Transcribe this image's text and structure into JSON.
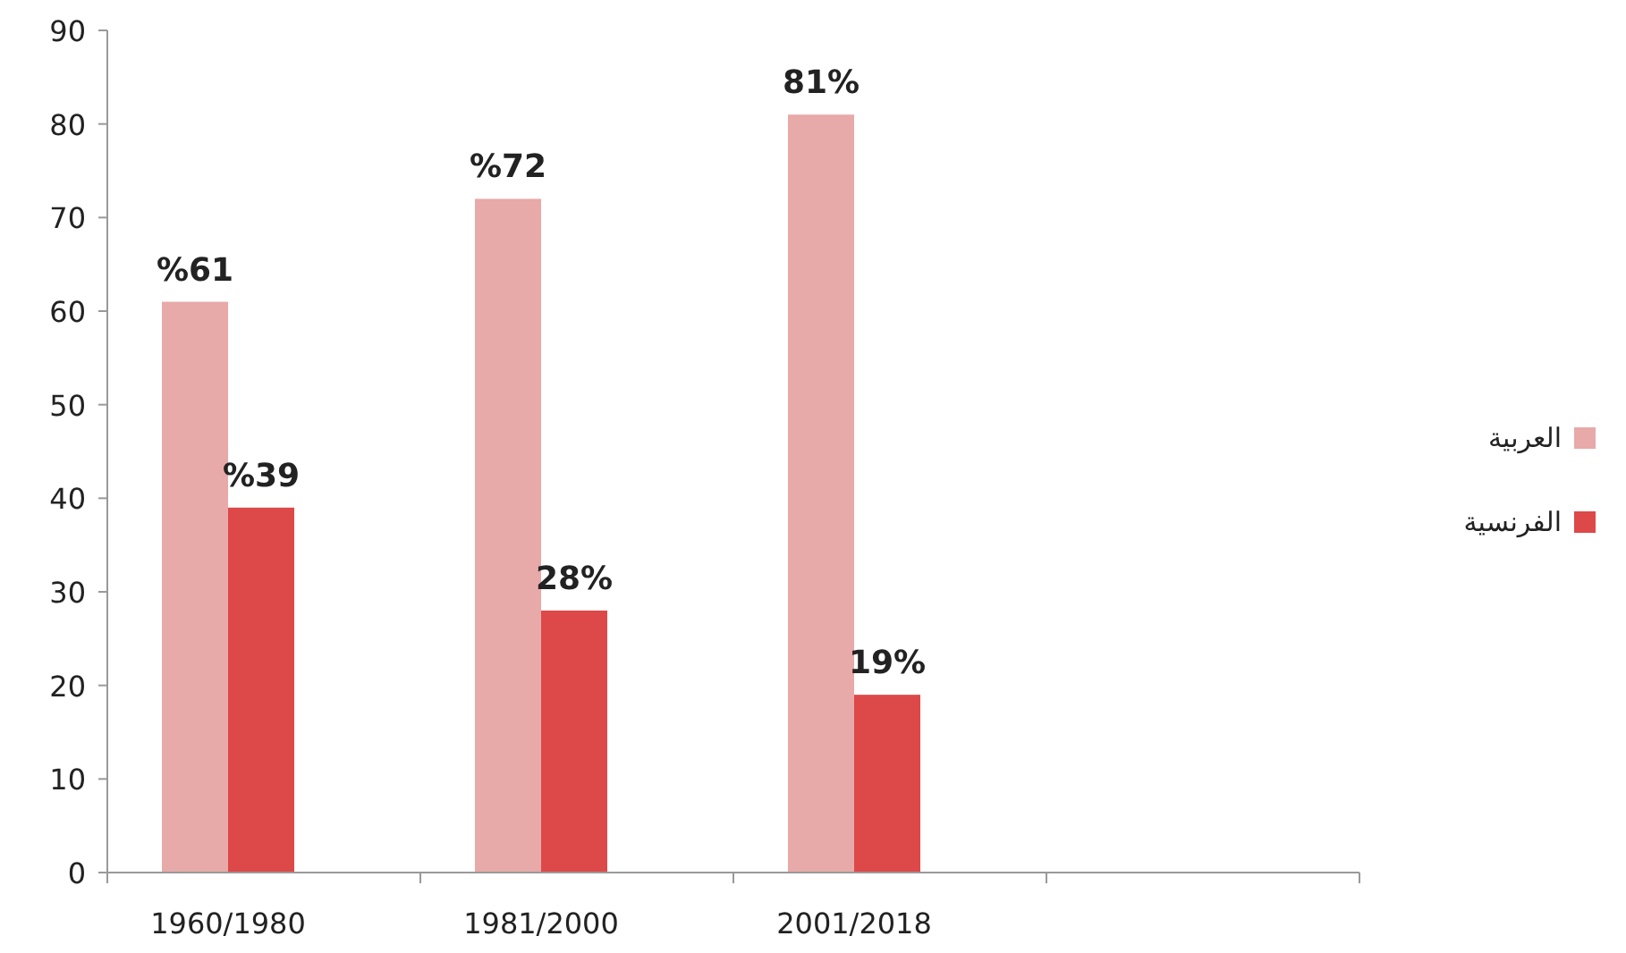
{
  "chart_data": {
    "type": "bar",
    "categories": [
      "1960/1980",
      "1981/2000",
      "2001/2018",
      null
    ],
    "series": [
      {
        "name": "العربية",
        "color": "#e8a9a9",
        "values": [
          61,
          72,
          81,
          null
        ],
        "value_labels": [
          "%61",
          "%72",
          "81%",
          null
        ]
      },
      {
        "name": "الفرنسية",
        "color": "#dd4848",
        "values": [
          39,
          28,
          19,
          null
        ],
        "value_labels": [
          "%39",
          "28%",
          "19%",
          null
        ]
      }
    ],
    "ylim": [
      0,
      90
    ],
    "yticks": [
      0,
      10,
      20,
      30,
      40,
      50,
      60,
      70,
      80,
      90
    ],
    "grid": false,
    "legend": "right"
  }
}
